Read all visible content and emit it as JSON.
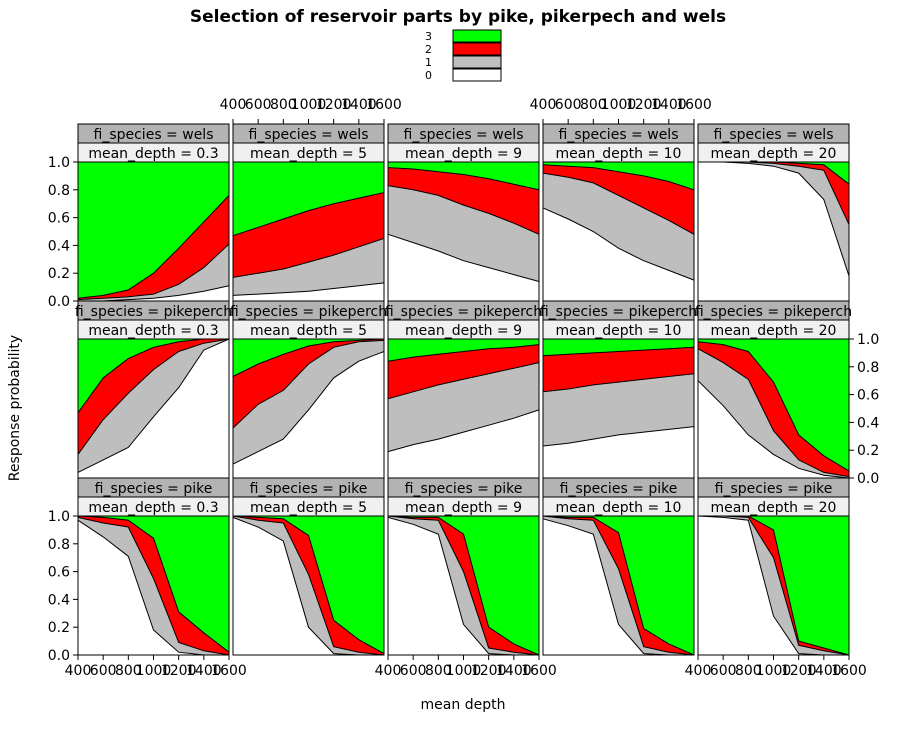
{
  "chart_data": {
    "type": "area",
    "title": "Selection of reservoir parts by pike, pikerpech and wels",
    "xlabel": "mean depth",
    "ylabel": "Response probability",
    "legend": {
      "placement": "top-center",
      "entries": [
        {
          "label": "3",
          "color": "#00ff00"
        },
        {
          "label": "2",
          "color": "#ff0000"
        },
        {
          "label": "1",
          "color": "#bebebe"
        },
        {
          "label": "0",
          "color": "#ffffff"
        }
      ]
    },
    "x_ticks": [
      "400",
      "600",
      "800",
      "1000",
      "1200",
      "1400",
      "1600"
    ],
    "y_ticks": [
      "0.0",
      "0.2",
      "0.4",
      "0.6",
      "0.8",
      "1.0"
    ],
    "xlim": [
      400,
      1600
    ],
    "ylim": [
      0,
      1
    ],
    "strip_species_labels": [
      "fi_species = wels",
      "fi_species = pikeperch",
      "fi_species = pike"
    ],
    "strip_depth_labels": [
      "mean_depth = 0.3",
      "mean_depth = 5",
      "mean_depth = 9",
      "mean_depth = 10",
      "mean_depth = 20"
    ],
    "x": [
      400,
      600,
      800,
      1000,
      1200,
      1400,
      1600
    ],
    "panels": [
      {
        "species": "wels",
        "depth": "0.3",
        "b1": [
          0.0,
          0.0,
          0.01,
          0.02,
          0.04,
          0.07,
          0.11
        ],
        "b2": [
          0.01,
          0.02,
          0.03,
          0.05,
          0.12,
          0.24,
          0.41
        ],
        "b3": [
          0.02,
          0.04,
          0.08,
          0.2,
          0.38,
          0.57,
          0.76
        ]
      },
      {
        "species": "wels",
        "depth": "5",
        "b1": [
          0.04,
          0.05,
          0.06,
          0.07,
          0.09,
          0.11,
          0.13
        ],
        "b2": [
          0.17,
          0.2,
          0.23,
          0.28,
          0.33,
          0.39,
          0.45
        ],
        "b3": [
          0.47,
          0.53,
          0.59,
          0.65,
          0.7,
          0.74,
          0.78
        ]
      },
      {
        "species": "wels",
        "depth": "9",
        "b1": [
          0.48,
          0.42,
          0.36,
          0.29,
          0.24,
          0.19,
          0.14
        ],
        "b2": [
          0.83,
          0.8,
          0.76,
          0.69,
          0.63,
          0.56,
          0.48
        ],
        "b3": [
          0.96,
          0.95,
          0.93,
          0.91,
          0.88,
          0.84,
          0.8
        ]
      },
      {
        "species": "wels",
        "depth": "10",
        "b1": [
          0.67,
          0.59,
          0.5,
          0.38,
          0.29,
          0.22,
          0.15
        ],
        "b2": [
          0.92,
          0.89,
          0.85,
          0.76,
          0.67,
          0.58,
          0.48
        ],
        "b3": [
          0.98,
          0.97,
          0.96,
          0.93,
          0.9,
          0.86,
          0.8
        ]
      },
      {
        "species": "wels",
        "depth": "20",
        "b1": [
          1.0,
          1.0,
          0.99,
          0.97,
          0.92,
          0.73,
          0.18
        ],
        "b2": [
          1.0,
          1.0,
          1.0,
          0.99,
          0.97,
          0.94,
          0.55
        ],
        "b3": [
          1.0,
          1.0,
          1.0,
          1.0,
          0.99,
          0.98,
          0.84
        ]
      },
      {
        "species": "pikeperch",
        "depth": "0.3",
        "b1": [
          0.04,
          0.13,
          0.22,
          0.44,
          0.65,
          0.92,
          1.0
        ],
        "b2": [
          0.17,
          0.42,
          0.61,
          0.78,
          0.91,
          0.97,
          1.0
        ],
        "b3": [
          0.47,
          0.72,
          0.86,
          0.94,
          0.98,
          1.0,
          1.0
        ]
      },
      {
        "species": "pikeperch",
        "depth": "5",
        "b1": [
          0.1,
          0.19,
          0.28,
          0.49,
          0.72,
          0.84,
          0.91
        ],
        "b2": [
          0.36,
          0.53,
          0.63,
          0.82,
          0.94,
          0.98,
          0.99
        ],
        "b3": [
          0.73,
          0.82,
          0.89,
          0.95,
          0.98,
          0.99,
          1.0
        ]
      },
      {
        "species": "pikeperch",
        "depth": "9",
        "b1": [
          0.19,
          0.24,
          0.28,
          0.33,
          0.38,
          0.43,
          0.49
        ],
        "b2": [
          0.57,
          0.62,
          0.67,
          0.71,
          0.75,
          0.79,
          0.83
        ],
        "b3": [
          0.84,
          0.87,
          0.89,
          0.91,
          0.93,
          0.94,
          0.96
        ]
      },
      {
        "species": "pikeperch",
        "depth": "10",
        "b1": [
          0.23,
          0.25,
          0.28,
          0.31,
          0.33,
          0.35,
          0.37
        ],
        "b2": [
          0.62,
          0.64,
          0.67,
          0.69,
          0.71,
          0.73,
          0.75
        ],
        "b3": [
          0.88,
          0.89,
          0.9,
          0.91,
          0.92,
          0.93,
          0.94
        ]
      },
      {
        "species": "pikeperch",
        "depth": "20",
        "b1": [
          0.7,
          0.52,
          0.31,
          0.17,
          0.07,
          0.02,
          0.0
        ],
        "b2": [
          0.93,
          0.83,
          0.71,
          0.34,
          0.13,
          0.04,
          0.01
        ],
        "b3": [
          0.98,
          0.96,
          0.91,
          0.69,
          0.31,
          0.16,
          0.05
        ]
      },
      {
        "species": "pike",
        "depth": "0.3",
        "b1": [
          0.97,
          0.85,
          0.71,
          0.18,
          0.02,
          0.0,
          0.0
        ],
        "b2": [
          0.99,
          0.95,
          0.92,
          0.55,
          0.09,
          0.03,
          0.0
        ],
        "b3": [
          1.0,
          0.99,
          0.97,
          0.84,
          0.31,
          0.16,
          0.02
        ]
      },
      {
        "species": "pike",
        "depth": "5",
        "b1": [
          0.99,
          0.92,
          0.82,
          0.2,
          0.01,
          0.0,
          0.0
        ],
        "b2": [
          1.0,
          0.97,
          0.95,
          0.58,
          0.06,
          0.02,
          0.0
        ],
        "b3": [
          1.0,
          0.99,
          0.98,
          0.86,
          0.25,
          0.11,
          0.01
        ]
      },
      {
        "species": "pike",
        "depth": "9",
        "b1": [
          0.99,
          0.94,
          0.87,
          0.22,
          0.01,
          0.0,
          0.0
        ],
        "b2": [
          1.0,
          0.98,
          0.97,
          0.6,
          0.05,
          0.02,
          0.0
        ],
        "b3": [
          1.0,
          0.99,
          0.99,
          0.87,
          0.2,
          0.08,
          0.0
        ]
      },
      {
        "species": "pike",
        "depth": "10",
        "b1": [
          0.98,
          0.93,
          0.87,
          0.22,
          0.01,
          0.0,
          0.0
        ],
        "b2": [
          1.0,
          0.98,
          0.97,
          0.62,
          0.06,
          0.02,
          0.0
        ],
        "b3": [
          1.0,
          0.99,
          0.99,
          0.88,
          0.19,
          0.08,
          0.0
        ]
      },
      {
        "species": "pike",
        "depth": "20",
        "b1": [
          1.0,
          0.99,
          0.97,
          0.28,
          0.01,
          0.0,
          0.0
        ],
        "b2": [
          1.0,
          1.0,
          0.99,
          0.7,
          0.07,
          0.03,
          0.0
        ],
        "b3": [
          1.0,
          1.0,
          1.0,
          0.9,
          0.1,
          0.05,
          0.0
        ]
      }
    ],
    "colors": {
      "band0": "#ffffff",
      "band1": "#bebebe",
      "band2": "#ff0000",
      "band3": "#00ff00",
      "strip_top": "#b3b3b3",
      "strip_bottom": "#f0f0f0"
    }
  }
}
